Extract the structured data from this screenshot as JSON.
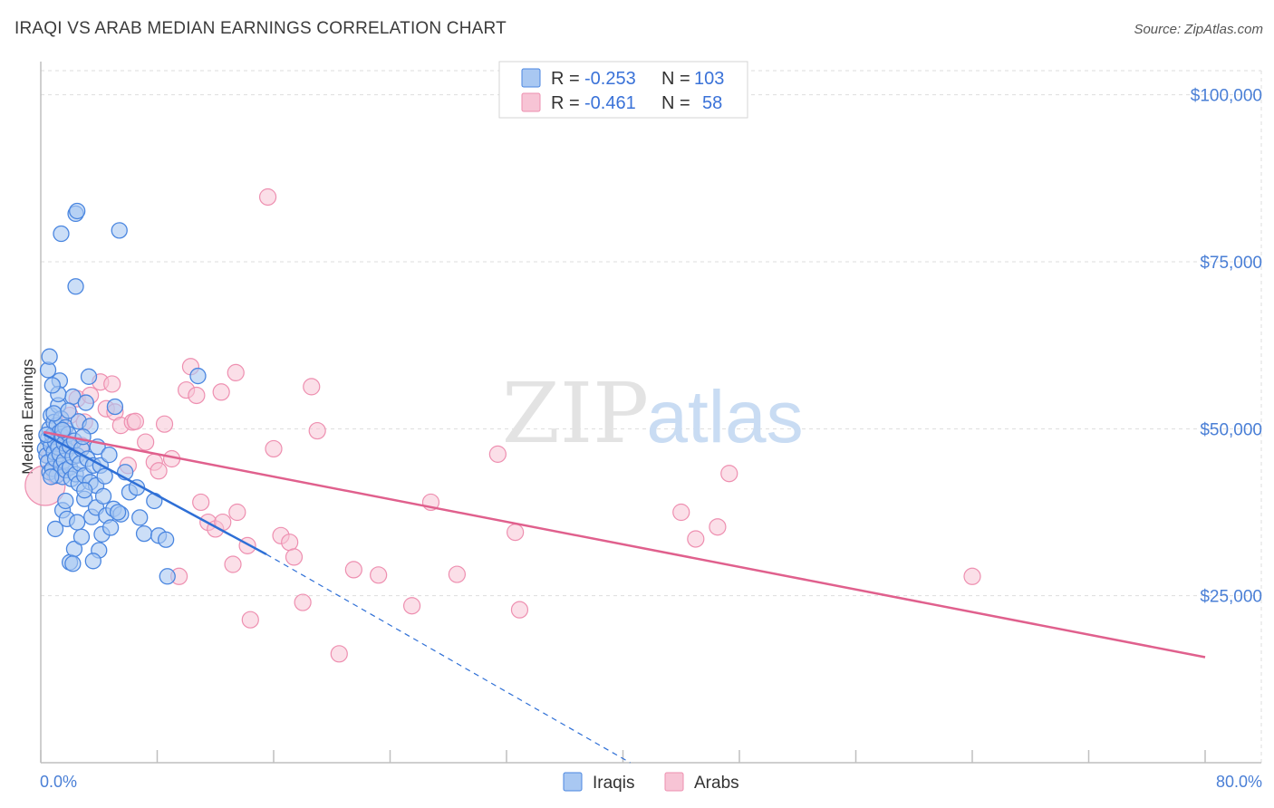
{
  "title": "IRAQI VS ARAB MEDIAN EARNINGS CORRELATION CHART",
  "source": "Source: ZipAtlas.com",
  "watermark": {
    "zip": "ZIP",
    "atlas": "atlas"
  },
  "colors": {
    "iraqis_fill": "#a9c8f2",
    "iraqis_stroke": "#4a86e0",
    "iraqis_line": "#2e6fd6",
    "arabs_fill": "#f7c4d5",
    "arabs_stroke": "#ee8fb0",
    "arabs_line": "#e0608d",
    "tick_text": "#4a7fd6",
    "grid": "#dddddd"
  },
  "legend": {
    "rows": [
      {
        "series": "Iraqis",
        "r_label": "R =",
        "r_value": "-0.253",
        "n_label": "N =",
        "n_value": "103"
      },
      {
        "series": "Arabs",
        "r_label": "R =",
        "r_value": "-0.461",
        "n_label": "N =",
        "n_value": "58"
      }
    ]
  },
  "bottom_legend": [
    "Iraqis",
    "Arabs"
  ],
  "chart_data": {
    "type": "scatter",
    "title": "IRAQI VS ARAB MEDIAN EARNINGS CORRELATION CHART",
    "xlabel": "",
    "ylabel": "Median Earnings",
    "xlim": [
      0,
      80
    ],
    "ylim": [
      0,
      105000
    ],
    "x_tick_labels": [
      "0.0%",
      "80.0%"
    ],
    "y_ticks": [
      25000,
      50000,
      75000,
      100000
    ],
    "y_tick_labels": [
      "$25,000",
      "$50,000",
      "$75,000",
      "$100,000"
    ],
    "grid": true,
    "series": [
      {
        "name": "Iraqis",
        "r": -0.253,
        "n": 103,
        "trend": {
          "x0": 0.2,
          "y0": 49200,
          "x1": 15.5,
          "y1": 31200,
          "dash_x1": 40.5,
          "dash_y1": 0
        },
        "points": [
          [
            0.3,
            47000
          ],
          [
            0.4,
            46000
          ],
          [
            0.5,
            48500
          ],
          [
            0.5,
            45000
          ],
          [
            0.6,
            50000
          ],
          [
            0.6,
            43500
          ],
          [
            0.7,
            47500
          ],
          [
            0.7,
            52000
          ],
          [
            0.8,
            49000
          ],
          [
            0.8,
            44000
          ],
          [
            0.9,
            46500
          ],
          [
            0.9,
            51000
          ],
          [
            1.0,
            48000
          ],
          [
            1.0,
            45500
          ],
          [
            1.1,
            50500
          ],
          [
            1.1,
            43000
          ],
          [
            1.2,
            47200
          ],
          [
            1.2,
            53500
          ],
          [
            1.3,
            49500
          ],
          [
            1.3,
            46200
          ],
          [
            1.4,
            44500
          ],
          [
            1.4,
            51500
          ],
          [
            1.5,
            48800
          ],
          [
            1.5,
            42800
          ],
          [
            1.6,
            47800
          ],
          [
            1.6,
            45200
          ],
          [
            1.7,
            50200
          ],
          [
            1.7,
            43800
          ],
          [
            1.8,
            46800
          ],
          [
            1.9,
            49200
          ],
          [
            2.0,
            44200
          ],
          [
            2.0,
            47400
          ],
          [
            2.1,
            42500
          ],
          [
            2.2,
            45800
          ],
          [
            2.3,
            48200
          ],
          [
            2.4,
            43200
          ],
          [
            2.5,
            46000
          ],
          [
            2.6,
            41800
          ],
          [
            2.7,
            44800
          ],
          [
            2.8,
            47000
          ],
          [
            3.0,
            43000
          ],
          [
            3.2,
            45500
          ],
          [
            3.4,
            42000
          ],
          [
            3.6,
            44500
          ],
          [
            3.8,
            41500
          ],
          [
            0.5,
            58800
          ],
          [
            0.6,
            60800
          ],
          [
            1.3,
            57200
          ],
          [
            1.5,
            49800
          ],
          [
            0.9,
            52300
          ],
          [
            2.2,
            54800
          ],
          [
            3.3,
            57800
          ],
          [
            5.1,
            53300
          ],
          [
            1.4,
            79200
          ],
          [
            2.4,
            82200
          ],
          [
            2.5,
            82600
          ],
          [
            5.4,
            79700
          ],
          [
            2.4,
            71300
          ],
          [
            10.8,
            57900
          ],
          [
            0.7,
            42800
          ],
          [
            1.5,
            37800
          ],
          [
            1.8,
            36500
          ],
          [
            2.0,
            30000
          ],
          [
            2.3,
            32000
          ],
          [
            2.5,
            36000
          ],
          [
            2.8,
            33800
          ],
          [
            3.0,
            39500
          ],
          [
            3.5,
            36800
          ],
          [
            3.8,
            38200
          ],
          [
            4.0,
            31800
          ],
          [
            4.2,
            34200
          ],
          [
            4.5,
            37000
          ],
          [
            4.8,
            35200
          ],
          [
            5.0,
            38000
          ],
          [
            5.5,
            37200
          ],
          [
            6.1,
            40500
          ],
          [
            7.1,
            34300
          ],
          [
            7.8,
            39200
          ],
          [
            8.1,
            34000
          ],
          [
            8.6,
            33400
          ],
          [
            8.7,
            27900
          ],
          [
            1.0,
            35000
          ],
          [
            2.2,
            29800
          ],
          [
            3.6,
            30200
          ],
          [
            4.3,
            39900
          ],
          [
            3.0,
            40800
          ],
          [
            1.7,
            39200
          ],
          [
            5.8,
            43500
          ],
          [
            4.1,
            44500
          ],
          [
            6.6,
            41200
          ],
          [
            2.6,
            51100
          ],
          [
            3.4,
            50400
          ],
          [
            1.2,
            55200
          ],
          [
            0.8,
            56500
          ],
          [
            3.9,
            47300
          ],
          [
            4.7,
            46100
          ],
          [
            2.9,
            48800
          ],
          [
            1.9,
            52700
          ],
          [
            3.1,
            53900
          ],
          [
            0.4,
            49100
          ],
          [
            4.4,
            42900
          ],
          [
            5.3,
            37500
          ],
          [
            6.8,
            36700
          ]
        ]
      },
      {
        "name": "Arabs",
        "r": -0.461,
        "n": 58,
        "trend": {
          "x0": 0.2,
          "y0": 49500,
          "x1": 80,
          "y1": 15800
        },
        "points": [
          [
            0.3,
            41500
          ],
          [
            1.5,
            49500
          ],
          [
            2.0,
            52000
          ],
          [
            2.5,
            54500
          ],
          [
            3.0,
            51000
          ],
          [
            3.4,
            55000
          ],
          [
            4.1,
            57000
          ],
          [
            4.5,
            53000
          ],
          [
            5.1,
            52500
          ],
          [
            5.5,
            50500
          ],
          [
            6.3,
            51000
          ],
          [
            6.0,
            44500
          ],
          [
            7.2,
            48000
          ],
          [
            7.8,
            45000
          ],
          [
            8.5,
            50700
          ],
          [
            9.0,
            45500
          ],
          [
            8.1,
            43700
          ],
          [
            9.5,
            27900
          ],
          [
            10.3,
            59300
          ],
          [
            10.0,
            55800
          ],
          [
            10.7,
            55000
          ],
          [
            11.0,
            39000
          ],
          [
            11.5,
            36000
          ],
          [
            12.0,
            35000
          ],
          [
            12.4,
            55500
          ],
          [
            12.5,
            36000
          ],
          [
            13.2,
            29700
          ],
          [
            13.4,
            58400
          ],
          [
            13.5,
            37500
          ],
          [
            14.2,
            32500
          ],
          [
            14.4,
            21400
          ],
          [
            15.6,
            84700
          ],
          [
            16.0,
            47000
          ],
          [
            16.5,
            34000
          ],
          [
            17.1,
            33000
          ],
          [
            17.4,
            30800
          ],
          [
            18.0,
            24000
          ],
          [
            18.6,
            56300
          ],
          [
            19.0,
            49700
          ],
          [
            20.5,
            16300
          ],
          [
            21.5,
            28900
          ],
          [
            23.2,
            28100
          ],
          [
            25.5,
            23500
          ],
          [
            26.8,
            39000
          ],
          [
            28.6,
            28200
          ],
          [
            31.4,
            46200
          ],
          [
            32.6,
            34500
          ],
          [
            32.9,
            22900
          ],
          [
            44.0,
            37500
          ],
          [
            45.0,
            33500
          ],
          [
            46.5,
            35300
          ],
          [
            47.3,
            43300
          ],
          [
            64.0,
            27900
          ],
          [
            0.6,
            45900
          ],
          [
            1.0,
            43000
          ],
          [
            2.8,
            47500
          ],
          [
            4.9,
            56700
          ],
          [
            6.5,
            51100
          ]
        ]
      }
    ]
  }
}
